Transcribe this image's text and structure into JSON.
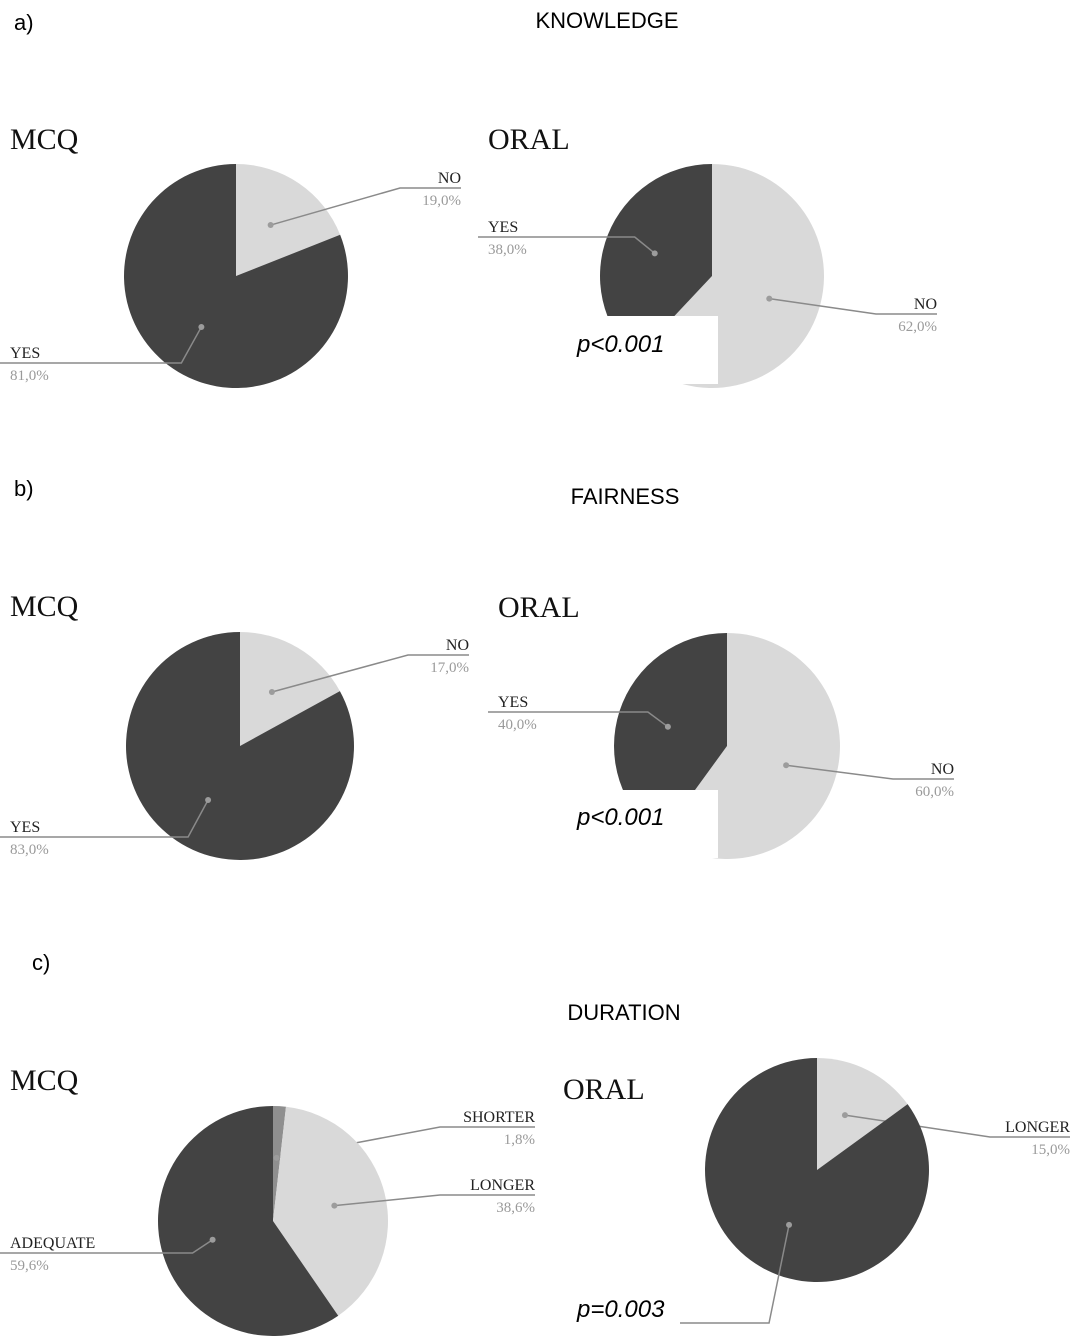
{
  "sections": [
    {
      "panel": "a)",
      "title": "KNOWLEDGE"
    },
    {
      "panel": "b)",
      "title": "FAIRNESS"
    },
    {
      "panel": "c)",
      "title": "DURATION"
    }
  ],
  "pvalues": [
    "p<0.001",
    "p<0.001",
    "p=0.003"
  ],
  "colors": {
    "dark": "#434343",
    "light": "#d9d9d9",
    "mid": "#8f8f8f",
    "leader": "#8a8a8a"
  },
  "chart_data": [
    {
      "type": "pie",
      "title": "MCQ",
      "section": "KNOWLEDGE",
      "slices": [
        {
          "label": "NO",
          "value": 19.0,
          "display": "19,0%",
          "color": "#d9d9d9"
        },
        {
          "label": "YES",
          "value": 81.0,
          "display": "81,0%",
          "color": "#434343"
        }
      ]
    },
    {
      "type": "pie",
      "title": "ORAL",
      "section": "KNOWLEDGE",
      "slices": [
        {
          "label": "NO",
          "value": 62.0,
          "display": "62,0%",
          "color": "#d9d9d9"
        },
        {
          "label": "YES",
          "value": 38.0,
          "display": "38,0%",
          "color": "#434343"
        }
      ]
    },
    {
      "type": "pie",
      "title": "MCQ",
      "section": "FAIRNESS",
      "slices": [
        {
          "label": "NO",
          "value": 17.0,
          "display": "17,0%",
          "color": "#d9d9d9"
        },
        {
          "label": "YES",
          "value": 83.0,
          "display": "83,0%",
          "color": "#434343"
        }
      ]
    },
    {
      "type": "pie",
      "title": "ORAL",
      "section": "FAIRNESS",
      "slices": [
        {
          "label": "NO",
          "value": 60.0,
          "display": "60,0%",
          "color": "#d9d9d9"
        },
        {
          "label": "YES",
          "value": 40.0,
          "display": "40,0%",
          "color": "#434343"
        }
      ]
    },
    {
      "type": "pie",
      "title": "MCQ",
      "section": "DURATION",
      "slices": [
        {
          "label": "SHORTER",
          "value": 1.8,
          "display": "1,8%",
          "color": "#8f8f8f"
        },
        {
          "label": "LONGER",
          "value": 38.6,
          "display": "38,6%",
          "color": "#d9d9d9"
        },
        {
          "label": "ADEQUATE",
          "value": 59.6,
          "display": "59,6%",
          "color": "#434343"
        }
      ]
    },
    {
      "type": "pie",
      "title": "ORAL",
      "section": "DURATION",
      "slices": [
        {
          "label": "LONGER",
          "value": 15.0,
          "display": "15,0%",
          "color": "#d9d9d9"
        },
        {
          "label": "",
          "value": 85.0,
          "display": "",
          "color": "#434343"
        }
      ]
    }
  ]
}
